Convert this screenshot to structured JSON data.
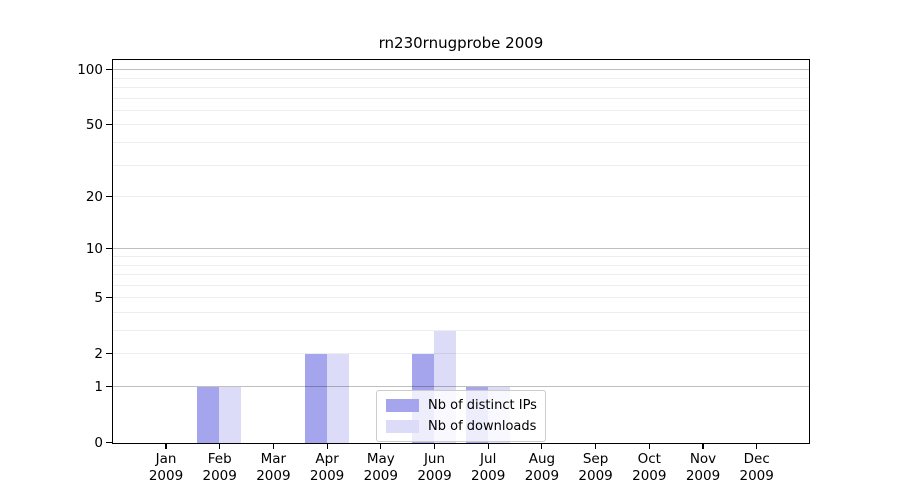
{
  "chart_data": {
    "type": "bar",
    "title": "rn230rnugprobe 2009",
    "categories": [
      "Jan",
      "Feb",
      "Mar",
      "Apr",
      "May",
      "Jun",
      "Jul",
      "Aug",
      "Sep",
      "Oct",
      "Nov",
      "Dec"
    ],
    "x_tick_year": "2009",
    "series": [
      {
        "name": "Nb of distinct IPs",
        "color": "#a5a5ee",
        "values": [
          0,
          1,
          0,
          2,
          0,
          2,
          1,
          0,
          0,
          0,
          0,
          0
        ]
      },
      {
        "name": "Nb of downloads",
        "color": "#dcdcf8",
        "values": [
          0,
          1,
          0,
          2,
          0,
          3,
          1,
          0,
          0,
          0,
          0,
          0
        ]
      }
    ],
    "y_axis": {
      "scale": "log1p",
      "lim": [
        0,
        112
      ],
      "tick_labels": [
        0,
        1,
        2,
        5,
        10,
        20,
        50,
        100
      ],
      "major_gridlines": [
        1,
        10,
        100
      ],
      "minor_gridlines": [
        2,
        3,
        4,
        5,
        6,
        7,
        8,
        9,
        20,
        30,
        40,
        50,
        60,
        70,
        80,
        90
      ]
    },
    "legend": {
      "position": "lower-center",
      "background": "rgba(255,255,255,0.8)",
      "border_color": "#cccccc"
    },
    "grid": true
  },
  "colors": {
    "axis": "#000000",
    "text": "#000000",
    "major_grid": "rgba(0,0,0,0.25)",
    "minor_grid": "rgba(0,0,0,0.07)"
  }
}
